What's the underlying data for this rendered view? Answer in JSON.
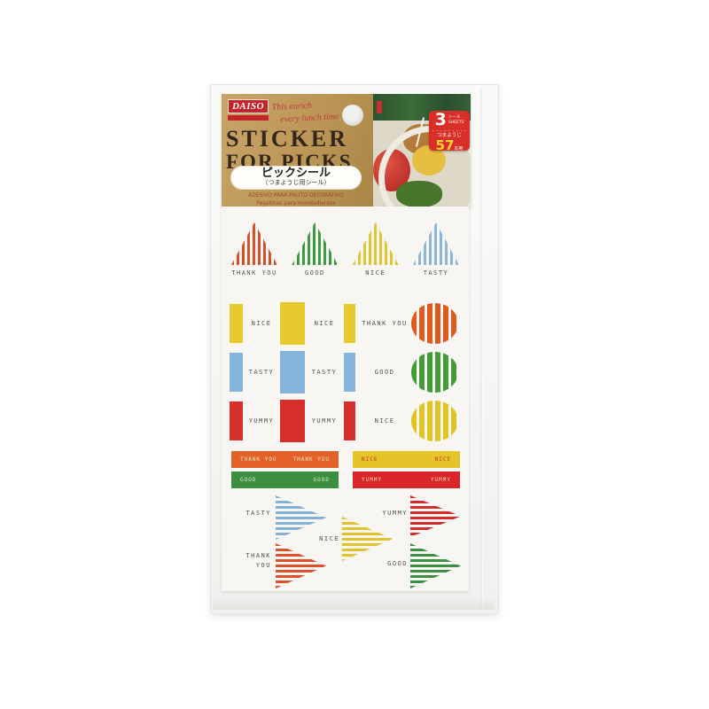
{
  "brand": {
    "name": "DAISO",
    "tagline_line1": "This enrich",
    "tagline_line2": "every lunch time"
  },
  "header": {
    "title_line1": "STICKER",
    "title_line2": "FOR PICKS",
    "jp_title": "ピックシール",
    "jp_subtitle": "（つまようじ用シール）",
    "translation_line1": "ADESIVO PARA PALITO DECORATIVO",
    "translation_line2": "Pegatinas para mondadientes"
  },
  "badge": {
    "sheets_count": "3",
    "sheets_unit_jp": "シール",
    "sheets_unit_en": "SHEETS",
    "dots": "・・・・・・・・・",
    "use_jp": "つまようじ",
    "picks_count": "57",
    "picks_unit": "本用"
  },
  "colors": {
    "brand_red": "#c4242c",
    "gold": "#bb9656",
    "badge_red": "#d82f28",
    "badge_yellow": "#ffd530",
    "sheet_white": "#f7f6f2"
  },
  "sheet": {
    "top_triangles": [
      {
        "label": "THANK YOU",
        "color": "#d5512c"
      },
      {
        "label": "GOOD",
        "color": "#3b9a42"
      },
      {
        "label": "NICE",
        "color": "#e2c42e"
      },
      {
        "label": "TASTY",
        "color": "#8bb6da"
      }
    ],
    "flag_rows": [
      {
        "bar_color": "#e6ca2e",
        "circle_color": "#e05a20",
        "labels": [
          "NICE",
          "NICE",
          "THANK YOU"
        ]
      },
      {
        "bar_color": "#84b4da",
        "circle_color": "#459a38",
        "labels": [
          "TASTY",
          "TASTY",
          "GOOD"
        ]
      },
      {
        "bar_color": "#d72f2b",
        "circle_color": "#e2c420",
        "labels": [
          "YUMMY",
          "YUMMY",
          "NICE"
        ]
      }
    ],
    "label_bars_left": [
      {
        "label": "THANK YOU",
        "bar_color": "#e2622a",
        "text_color": "#f8e3c0"
      },
      {
        "label": "GOOD",
        "bar_color": "#3c8f40",
        "text_color": "#d4ecc2"
      }
    ],
    "label_bars_right": [
      {
        "label": "NICE",
        "bar_color": "#e4c428",
        "text_color": "#c03520"
      },
      {
        "label": "YUMMY",
        "bar_color": "#d8262b",
        "text_color": "#f6d8a0"
      }
    ],
    "bottom_triangles": [
      {
        "label": "TASTY",
        "color": "#84b0d6"
      },
      {
        "label": "NICE",
        "color": "#e0c22c"
      },
      {
        "label": "YUMMY",
        "color": "#d6292b"
      },
      {
        "label": "THANK YOU",
        "color": "#da512a"
      },
      {
        "label": "GOOD",
        "color": "#3c8f40"
      }
    ]
  }
}
